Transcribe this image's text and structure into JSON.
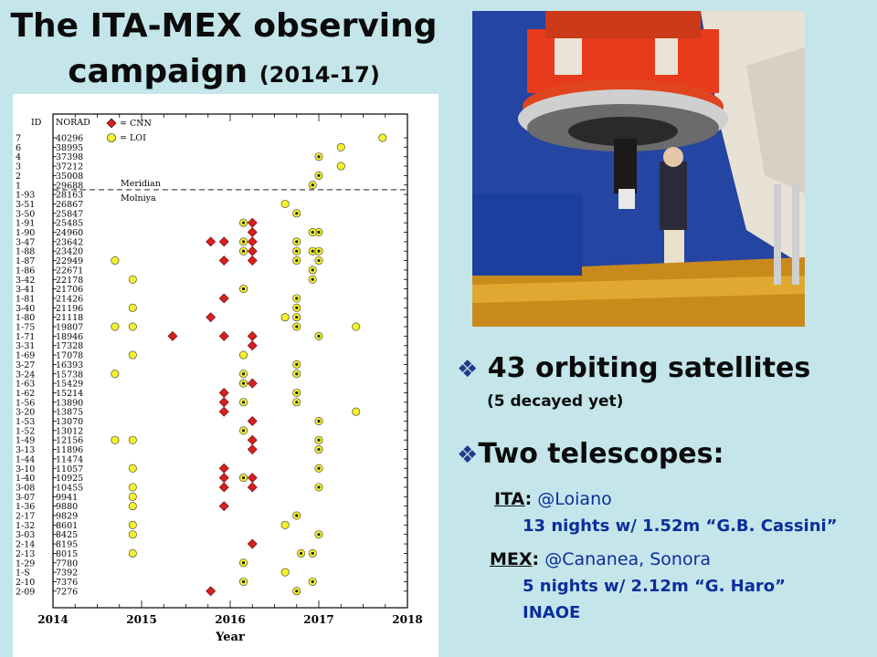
{
  "title": {
    "line1": "The ITA-MEX observing",
    "line2": "campaign",
    "years": "(2014-17)"
  },
  "bullets": {
    "b1": "43 orbiting satellites",
    "b1_sub": "(5 decayed yet)",
    "b2": "Two telescopes:",
    "ita_label": "ITA",
    "ita_colon": ":",
    "ita_site": "@Loiano",
    "ita_detail": "13 nights w/ 1.52m “G.B. Cassini”",
    "mex_label": "MEX",
    "mex_colon": ":",
    "mex_site": "@Cananea, Sonora",
    "mex_detail": "5 nights w/ 2.12m “G. Haro”",
    "mex_inst": "INAOE"
  },
  "colors": {
    "bg": "#c4e6ea",
    "cnn": "#d81f1f",
    "loi": "#f4f22a",
    "text_blue": "#0c2d9c"
  },
  "photo": {
    "icon": "telescope-photo"
  },
  "chart_data": {
    "type": "scatter",
    "xlabel": "Year",
    "x_ticks": [
      "2014",
      "2015",
      "2016",
      "2017",
      "2018"
    ],
    "xlim": [
      2014,
      2018
    ],
    "col_headers": {
      "id": "ID",
      "norad": "NORAD"
    },
    "legend": [
      {
        "name": "= CNN",
        "marker": "diamond",
        "color": "#d81f1f"
      },
      {
        "name": "= LOI",
        "marker": "circle",
        "color": "#f4f22a"
      }
    ],
    "annotations": {
      "above": "Meridian",
      "below": "Molniya"
    },
    "rows": [
      {
        "id": "7",
        "norad": "40296"
      },
      {
        "id": "6",
        "norad": "38995"
      },
      {
        "id": "4",
        "norad": "37398"
      },
      {
        "id": "3",
        "norad": "37212"
      },
      {
        "id": "2",
        "norad": "35008"
      },
      {
        "id": "1",
        "norad": "29688"
      },
      {
        "id": "1-93",
        "norad": "28163"
      },
      {
        "id": "3-51",
        "norad": "26867"
      },
      {
        "id": "3-50",
        "norad": "25847"
      },
      {
        "id": "1-91",
        "norad": "25485"
      },
      {
        "id": "1-90",
        "norad": "24960"
      },
      {
        "id": "3-47",
        "norad": "23642"
      },
      {
        "id": "1-88",
        "norad": "23420"
      },
      {
        "id": "1-87",
        "norad": "22949"
      },
      {
        "id": "1-86",
        "norad": "22671"
      },
      {
        "id": "3-42",
        "norad": "22178"
      },
      {
        "id": "3-41",
        "norad": "21706"
      },
      {
        "id": "1-81",
        "norad": "21426"
      },
      {
        "id": "3-40",
        "norad": "21196"
      },
      {
        "id": "1-80",
        "norad": "21118"
      },
      {
        "id": "1-75",
        "norad": "19807"
      },
      {
        "id": "1-71",
        "norad": "18946"
      },
      {
        "id": "3-31",
        "norad": "17328"
      },
      {
        "id": "1-69",
        "norad": "17078"
      },
      {
        "id": "3-27",
        "norad": "16393"
      },
      {
        "id": "3-24",
        "norad": "15738"
      },
      {
        "id": "1-63",
        "norad": "15429"
      },
      {
        "id": "1-62",
        "norad": "15214"
      },
      {
        "id": "1-56",
        "norad": "13890"
      },
      {
        "id": "3-20",
        "norad": "13875"
      },
      {
        "id": "1-53",
        "norad": "13070"
      },
      {
        "id": "1-52",
        "norad": "13012"
      },
      {
        "id": "1-49",
        "norad": "12156"
      },
      {
        "id": "3-13",
        "norad": "11896"
      },
      {
        "id": "1-44",
        "norad": "11474"
      },
      {
        "id": "3-10",
        "norad": "11057"
      },
      {
        "id": "1-40",
        "norad": "10925"
      },
      {
        "id": "3-08",
        "norad": "10455"
      },
      {
        "id": "3-07",
        "norad": "9941"
      },
      {
        "id": "1-36",
        "norad": "9880"
      },
      {
        "id": "2-17",
        "norad": "9829"
      },
      {
        "id": "1-32",
        "norad": "8601"
      },
      {
        "id": "3-03",
        "norad": "8425"
      },
      {
        "id": "2-14",
        "norad": "8195"
      },
      {
        "id": "2-13",
        "norad": "8015"
      },
      {
        "id": "1-29",
        "norad": "7780"
      },
      {
        "id": "1-S",
        "norad": "7392"
      },
      {
        "id": "2-10",
        "norad": "7376"
      },
      {
        "id": "2-09",
        "norad": "7276"
      }
    ],
    "cnn_points": [
      [
        2016.25,
        "1-91"
      ],
      [
        2015.78,
        "3-47"
      ],
      [
        2015.93,
        "3-47"
      ],
      [
        2016.25,
        "3-47"
      ],
      [
        2016.25,
        "1-90"
      ],
      [
        2016.25,
        "1-88"
      ],
      [
        2015.93,
        "1-87"
      ],
      [
        2016.25,
        "1-87"
      ],
      [
        2015.93,
        "1-81"
      ],
      [
        2015.78,
        "1-80"
      ],
      [
        2015.35,
        "1-71"
      ],
      [
        2015.93,
        "1-71"
      ],
      [
        2016.25,
        "1-71"
      ],
      [
        2016.25,
        "3-31"
      ],
      [
        2016.25,
        "1-63"
      ],
      [
        2015.93,
        "1-62"
      ],
      [
        2015.93,
        "1-56"
      ],
      [
        2015.93,
        "3-20"
      ],
      [
        2016.25,
        "1-53"
      ],
      [
        2016.25,
        "1-49"
      ],
      [
        2016.25,
        "3-13"
      ],
      [
        2015.93,
        "3-10"
      ],
      [
        2016.25,
        "1-40"
      ],
      [
        2015.93,
        "1-40"
      ],
      [
        2015.93,
        "3-08"
      ],
      [
        2016.25,
        "3-08"
      ],
      [
        2015.93,
        "1-36"
      ],
      [
        2016.25,
        "2-14"
      ],
      [
        2015.78,
        "2-09"
      ]
    ],
    "loi_points": [
      [
        2017.72,
        "7"
      ],
      [
        2017.25,
        "6"
      ],
      [
        2017.0,
        "4"
      ],
      [
        2017.25,
        "3"
      ],
      [
        2017.0,
        "2"
      ],
      [
        2016.93,
        "1"
      ],
      [
        2016.62,
        "3-51"
      ],
      [
        2016.75,
        "3-50"
      ],
      [
        2016.15,
        "1-91"
      ],
      [
        2017.0,
        "1-90"
      ],
      [
        2016.93,
        "1-90"
      ],
      [
        2016.15,
        "3-47"
      ],
      [
        2016.75,
        "3-47"
      ],
      [
        2016.15,
        "1-88"
      ],
      [
        2016.75,
        "1-88"
      ],
      [
        2016.93,
        "1-88"
      ],
      [
        2017.0,
        "1-88"
      ],
      [
        2014.7,
        "1-87"
      ],
      [
        2016.75,
        "1-87"
      ],
      [
        2017.0,
        "1-87"
      ],
      [
        2016.93,
        "1-86"
      ],
      [
        2014.9,
        "3-42"
      ],
      [
        2016.93,
        "3-42"
      ],
      [
        2016.15,
        "3-41"
      ],
      [
        2016.75,
        "1-81"
      ],
      [
        2014.9,
        "3-40"
      ],
      [
        2016.75,
        "3-40"
      ],
      [
        2016.62,
        "1-80"
      ],
      [
        2016.75,
        "1-80"
      ],
      [
        2014.7,
        "1-75"
      ],
      [
        2014.9,
        "1-75"
      ],
      [
        2016.75,
        "1-75"
      ],
      [
        2017.42,
        "1-75"
      ],
      [
        2017.0,
        "1-71"
      ],
      [
        2014.9,
        "1-69"
      ],
      [
        2016.15,
        "1-69"
      ],
      [
        2016.75,
        "3-27"
      ],
      [
        2014.7,
        "3-24"
      ],
      [
        2016.15,
        "3-24"
      ],
      [
        2016.75,
        "3-24"
      ],
      [
        2016.15,
        "1-63"
      ],
      [
        2016.75,
        "1-62"
      ],
      [
        2016.15,
        "1-56"
      ],
      [
        2016.75,
        "1-56"
      ],
      [
        2017.42,
        "3-20"
      ],
      [
        2017.0,
        "1-53"
      ],
      [
        2016.15,
        "1-52"
      ],
      [
        2014.7,
        "1-49"
      ],
      [
        2014.9,
        "1-49"
      ],
      [
        2017.0,
        "1-49"
      ],
      [
        2017.0,
        "3-13"
      ],
      [
        2014.9,
        "3-10"
      ],
      [
        2017.0,
        "3-10"
      ],
      [
        2016.15,
        "1-40"
      ],
      [
        2014.9,
        "3-08"
      ],
      [
        2017.0,
        "3-08"
      ],
      [
        2014.9,
        "3-07"
      ],
      [
        2014.9,
        "1-36"
      ],
      [
        2016.75,
        "2-17"
      ],
      [
        2014.9,
        "1-32"
      ],
      [
        2016.62,
        "1-32"
      ],
      [
        2014.9,
        "3-03"
      ],
      [
        2017.0,
        "3-03"
      ],
      [
        2014.9,
        "2-13"
      ],
      [
        2016.8,
        "2-13"
      ],
      [
        2016.93,
        "2-13"
      ],
      [
        2016.15,
        "1-29"
      ],
      [
        2016.62,
        "1-S"
      ],
      [
        2016.15,
        "2-10"
      ],
      [
        2016.93,
        "2-10"
      ],
      [
        2016.75,
        "2-09"
      ]
    ]
  }
}
